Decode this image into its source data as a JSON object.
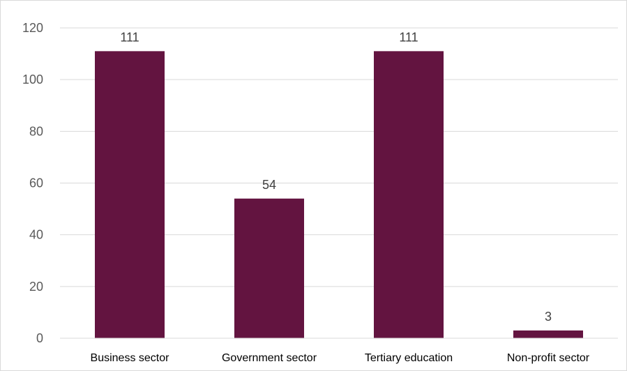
{
  "chart_data": {
    "type": "bar",
    "title": "",
    "xlabel": "",
    "ylabel": "",
    "categories": [
      "Business sector",
      "Government sector",
      "Tertiary education",
      "Non-profit sector"
    ],
    "values": [
      111,
      54,
      111,
      3
    ],
    "data_labels": [
      "111",
      "54",
      "111",
      "3"
    ],
    "ylim": [
      0,
      120
    ],
    "y_ticks": [
      0,
      20,
      40,
      60,
      80,
      100,
      120
    ],
    "y_tick_labels": [
      "0",
      "20",
      "40",
      "60",
      "80",
      "100",
      "120"
    ],
    "grid": true,
    "legend": "none",
    "bar_color": "#631440",
    "grid_color": "#d9d9d9"
  }
}
